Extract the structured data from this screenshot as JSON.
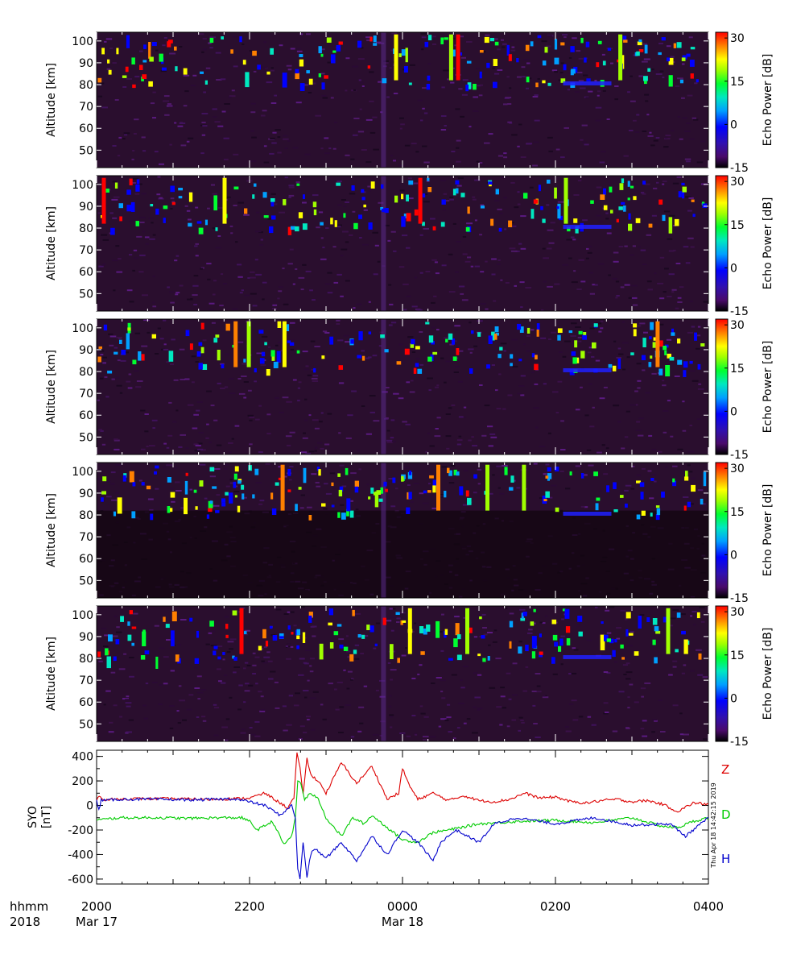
{
  "chart_data": [
    {
      "type": "heatmap",
      "panel": 1,
      "ylabel": "Altitude [km]",
      "ylim": [
        42,
        104
      ],
      "y_ticks": [
        50,
        60,
        70,
        80,
        90,
        100
      ],
      "y_tick_labels": [
        "50",
        "60",
        "70",
        "80",
        "90",
        "100"
      ],
      "colorbar": {
        "label": "Echo Power [dB]",
        "range": [
          -15,
          32
        ],
        "ticks": [
          -15,
          0,
          15,
          30
        ],
        "tick_labels": [
          "-15",
          "0",
          "15",
          "30"
        ]
      }
    },
    {
      "type": "heatmap",
      "panel": 2,
      "ylabel": "Altitude [km]",
      "ylim": [
        42,
        104
      ],
      "y_ticks": [
        50,
        60,
        70,
        80,
        90,
        100
      ],
      "y_tick_labels": [
        "50",
        "60",
        "70",
        "80",
        "90",
        "100"
      ],
      "colorbar": {
        "label": "Echo Power [dB]",
        "range": [
          -15,
          32
        ],
        "ticks": [
          -15,
          0,
          15,
          30
        ],
        "tick_labels": [
          "-15",
          "0",
          "15",
          "30"
        ]
      }
    },
    {
      "type": "heatmap",
      "panel": 3,
      "ylabel": "Altitude [km]",
      "ylim": [
        42,
        104
      ],
      "y_ticks": [
        50,
        60,
        70,
        80,
        90,
        100
      ],
      "y_tick_labels": [
        "50",
        "60",
        "70",
        "80",
        "90",
        "100"
      ],
      "colorbar": {
        "label": "Echo Power [dB]",
        "range": [
          -15,
          32
        ],
        "ticks": [
          -15,
          0,
          15,
          30
        ],
        "tick_labels": [
          "-15",
          "0",
          "15",
          "30"
        ]
      }
    },
    {
      "type": "heatmap",
      "panel": 4,
      "ylabel": "Altitude [km]",
      "ylim": [
        42,
        104
      ],
      "y_ticks": [
        50,
        60,
        70,
        80,
        90,
        100
      ],
      "y_tick_labels": [
        "50",
        "60",
        "70",
        "80",
        "90",
        "100"
      ],
      "colorbar": {
        "label": "Echo Power [dB]",
        "range": [
          -15,
          32
        ],
        "ticks": [
          -15,
          0,
          15,
          30
        ],
        "tick_labels": [
          "-15",
          "0",
          "15",
          "30"
        ]
      }
    },
    {
      "type": "heatmap",
      "panel": 5,
      "ylabel": "Altitude [km]",
      "ylim": [
        42,
        104
      ],
      "y_ticks": [
        50,
        60,
        70,
        80,
        90,
        100
      ],
      "y_tick_labels": [
        "50",
        "60",
        "70",
        "80",
        "90",
        "100"
      ],
      "colorbar": {
        "label": "Echo Power [dB]",
        "range": [
          -15,
          32
        ],
        "ticks": [
          -15,
          0,
          15,
          30
        ],
        "tick_labels": [
          "-15",
          "0",
          "15",
          "30"
        ]
      }
    },
    {
      "type": "line",
      "panel": 6,
      "ylabel": "SYO [nT]",
      "ylim": [
        -640,
        450
      ],
      "y_ticks": [
        -600,
        -400,
        -200,
        0,
        200,
        400
      ],
      "y_tick_labels": [
        "-600",
        "-400",
        "-200",
        "0",
        "200",
        "400"
      ],
      "xlim": [
        0,
        8
      ],
      "x_unit": "hours after 2000 UT, Mar 17 2018",
      "series": [
        {
          "name": "Z",
          "color": "#dd0000",
          "x": [
            0,
            0.05,
            0.1,
            0.2,
            0.5,
            1.0,
            1.5,
            1.8,
            2.0,
            2.2,
            2.35,
            2.5,
            2.58,
            2.62,
            2.66,
            2.7,
            2.75,
            2.8,
            2.9,
            3.0,
            3.2,
            3.4,
            3.6,
            3.8,
            3.95,
            4.0,
            4.1,
            4.2,
            4.4,
            4.6,
            4.8,
            5.0,
            5.2,
            5.4,
            5.6,
            5.8,
            6.0,
            6.2,
            6.4,
            6.6,
            6.8,
            7.0,
            7.2,
            7.4,
            7.6,
            7.8,
            8.0
          ],
          "y": [
            50,
            80,
            40,
            50,
            55,
            55,
            50,
            55,
            60,
            100,
            40,
            -20,
            60,
            420,
            300,
            100,
            380,
            250,
            200,
            100,
            350,
            180,
            320,
            50,
            100,
            300,
            150,
            50,
            100,
            40,
            80,
            40,
            30,
            50,
            100,
            60,
            70,
            30,
            20,
            40,
            50,
            30,
            40,
            10,
            -50,
            20,
            10
          ]
        },
        {
          "name": "D",
          "color": "#00cc00",
          "x": [
            0,
            0.3,
            0.8,
            1.2,
            1.6,
            1.9,
            2.0,
            2.1,
            2.3,
            2.45,
            2.5,
            2.55,
            2.6,
            2.63,
            2.67,
            2.72,
            2.8,
            2.9,
            3.0,
            3.2,
            3.35,
            3.5,
            3.6,
            3.8,
            4.0,
            4.2,
            4.4,
            4.6,
            5.0,
            5.5,
            6.0,
            6.5,
            7.0,
            7.4,
            7.6,
            7.8,
            8.0
          ],
          "y": [
            -120,
            -100,
            -100,
            -105,
            -100,
            -100,
            -130,
            -200,
            -130,
            -320,
            -280,
            -250,
            -100,
            200,
            180,
            50,
            100,
            50,
            -100,
            -250,
            -100,
            -150,
            -80,
            -180,
            -280,
            -300,
            -220,
            -200,
            -150,
            -130,
            -120,
            -140,
            -100,
            -170,
            -180,
            -130,
            -100
          ]
        },
        {
          "name": "H",
          "color": "#0000cc",
          "x": [
            0,
            0.03,
            0.06,
            0.1,
            0.3,
            0.8,
            1.3,
            1.8,
            2.0,
            2.2,
            2.4,
            2.55,
            2.6,
            2.63,
            2.66,
            2.7,
            2.75,
            2.8,
            2.85,
            3.0,
            3.2,
            3.4,
            3.6,
            3.8,
            4.0,
            4.2,
            4.4,
            4.5,
            4.7,
            5.0,
            5.2,
            5.5,
            6.0,
            6.5,
            7.0,
            7.5,
            7.7,
            8.0
          ],
          "y": [
            40,
            -40,
            50,
            40,
            50,
            50,
            45,
            55,
            30,
            0,
            -80,
            0,
            -100,
            -520,
            -600,
            -300,
            -580,
            -400,
            -350,
            -430,
            -300,
            -450,
            -250,
            -400,
            -200,
            -300,
            -450,
            -300,
            -200,
            -300,
            -150,
            -100,
            -150,
            -100,
            -160,
            -150,
            -250,
            -100
          ]
        }
      ]
    }
  ],
  "x_axis": {
    "row_labels": [
      "hhmm",
      "2018"
    ],
    "ticks": [
      {
        "t": 0,
        "label": "2000",
        "date": "Mar 17"
      },
      {
        "t": 2,
        "label": "2200",
        "date": ""
      },
      {
        "t": 4,
        "label": "0000",
        "date": "Mar 18"
      },
      {
        "t": 6,
        "label": "0200",
        "date": ""
      },
      {
        "t": 8,
        "label": "0400",
        "date": ""
      }
    ]
  },
  "timestamp": "Thu Apr 18 14:42:15 2019",
  "colormap": [
    "#000000",
    "#5a0f7a",
    "#3a0aa0",
    "#0000ff",
    "#00aaff",
    "#00e0c0",
    "#00ff40",
    "#a0ff00",
    "#ffff00",
    "#ff8000",
    "#ff0000"
  ],
  "background_color": "#2a0e2e"
}
